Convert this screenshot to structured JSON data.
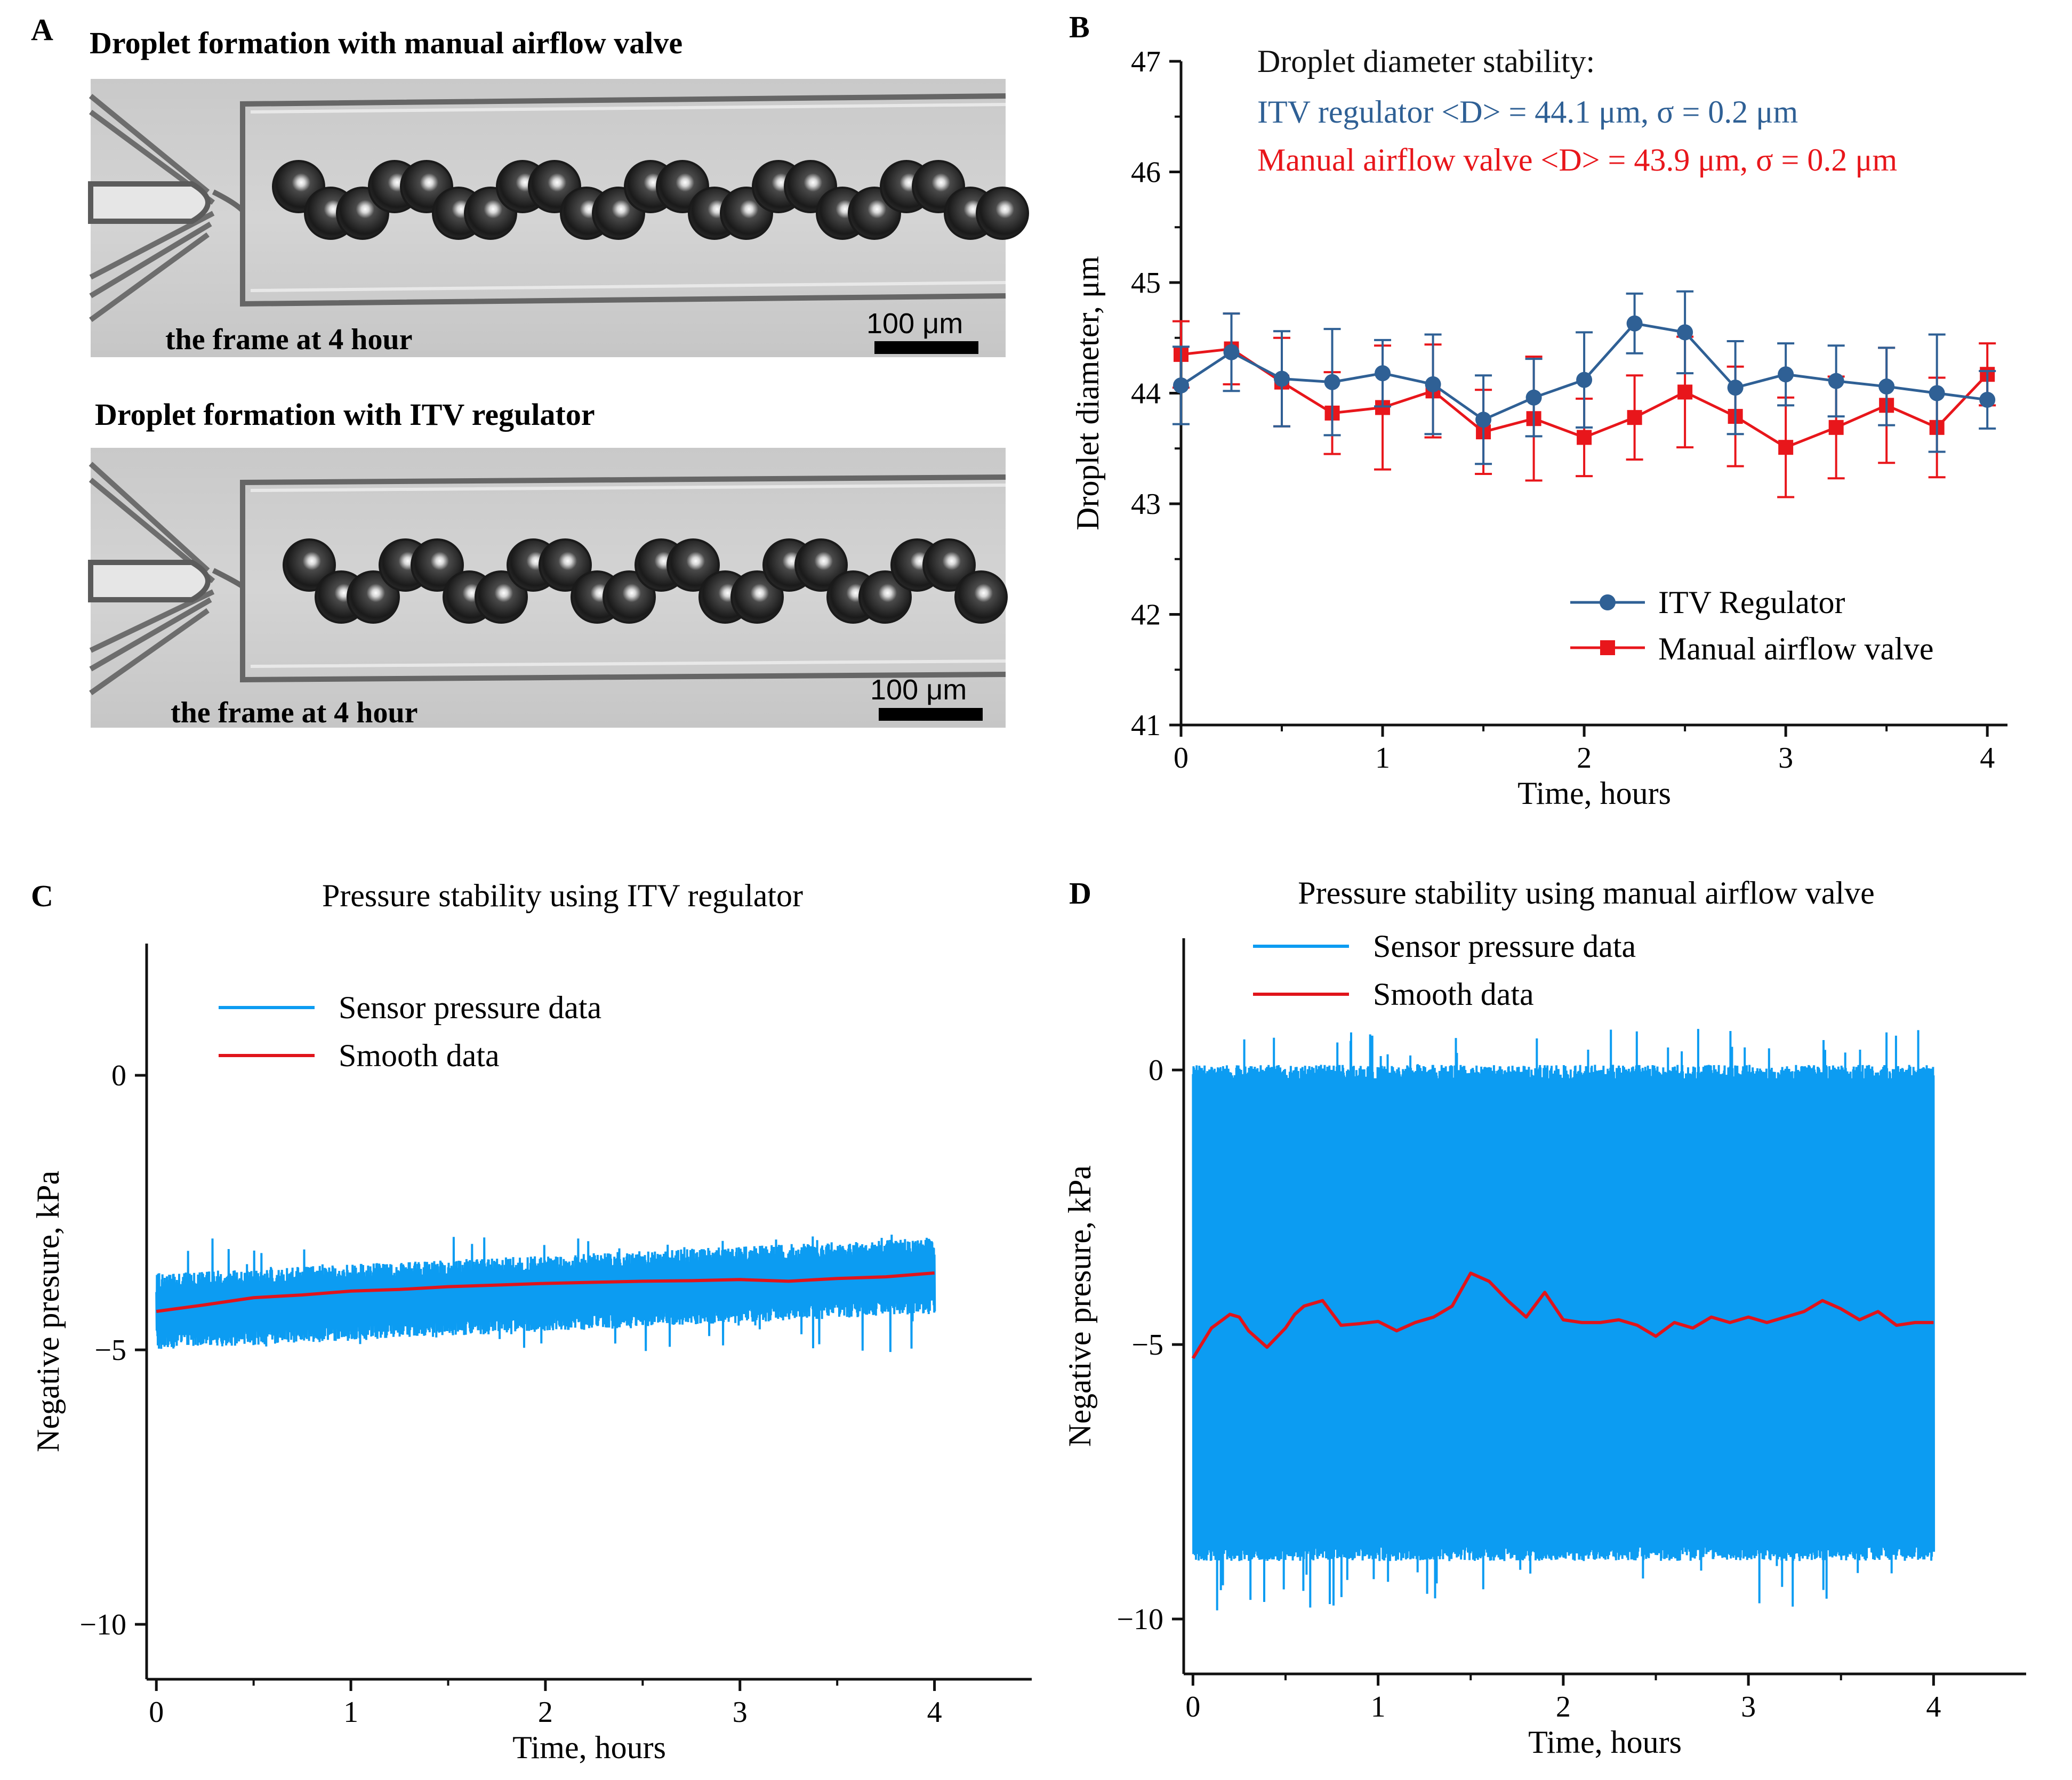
{
  "panels": {
    "A": {
      "letter": "A",
      "top_title": "Droplet formation with manual airflow valve",
      "top_caption": "the frame at 4 hour",
      "top_scale": "100 μm",
      "bottom_title": "Droplet formation with ITV regulator",
      "bottom_caption": "the frame at 4 hour",
      "bottom_scale": "100 μm"
    },
    "B": {
      "letter": "B"
    },
    "C": {
      "letter": "C"
    },
    "D": {
      "letter": "D"
    }
  },
  "colors": {
    "itv": "#2f6095",
    "manual": "#e8161b",
    "sensor": "#0c9cf2",
    "smooth": "#e0141b",
    "axis": "#111111"
  },
  "chart_data": [
    {
      "id": "B",
      "type": "line",
      "title": "",
      "xlabel": "Time, hours",
      "ylabel": "Droplet diameter, μm",
      "xlim": [
        0,
        4.1
      ],
      "ylim": [
        41,
        47
      ],
      "xticks": [
        0,
        1,
        2,
        3,
        4
      ],
      "xtick_labels": [
        "0",
        "1",
        "2",
        "3",
        "4"
      ],
      "yticks": [
        41,
        42,
        43,
        44,
        45,
        46,
        47
      ],
      "ytick_labels": [
        "41",
        "42",
        "43",
        "44",
        "45",
        "46",
        "47"
      ],
      "annotations": {
        "heading": "Droplet diameter stability:",
        "itv": "ITV regulator  <D> = 44.1 μm,  σ = 0.2 μm",
        "manual": "Manual airflow valve  <D> = 43.9 μm,  σ = 0.2 μm"
      },
      "x": [
        0,
        0.25,
        0.5,
        0.75,
        1,
        1.25,
        1.5,
        1.75,
        2,
        2.25,
        2.5,
        2.75,
        3,
        3.25,
        3.5,
        3.75,
        4
      ],
      "series": [
        {
          "name": "ITV Regulator",
          "marker": "circle",
          "values": [
            44.07,
            44.37,
            44.13,
            44.1,
            44.18,
            44.08,
            43.76,
            43.96,
            44.12,
            44.63,
            44.55,
            44.05,
            44.17,
            44.11,
            44.06,
            44.0,
            43.94
          ],
          "errors": [
            0.35,
            0.35,
            0.43,
            0.48,
            0.3,
            0.45,
            0.4,
            0.35,
            0.43,
            0.27,
            0.37,
            0.42,
            0.28,
            0.32,
            0.35,
            0.53,
            0.26
          ]
        },
        {
          "name": "Manual airflow valve",
          "marker": "square",
          "values": [
            44.35,
            44.4,
            44.1,
            43.82,
            43.87,
            44.02,
            43.65,
            43.77,
            43.6,
            43.78,
            44.01,
            43.79,
            43.51,
            43.69,
            43.89,
            43.69,
            44.17
          ],
          "errors": [
            0.3,
            0.32,
            0.4,
            0.37,
            0.56,
            0.42,
            0.38,
            0.56,
            0.35,
            0.38,
            0.5,
            0.45,
            0.45,
            0.46,
            0.52,
            0.45,
            0.28
          ]
        }
      ]
    },
    {
      "id": "C",
      "type": "line",
      "title": "Pressure stability using ITV regulator",
      "xlabel": "Time, hours",
      "ylabel": "Negative presure, kPa",
      "xlim": [
        -0.05,
        4.5
      ],
      "ylim": [
        -11,
        2.4
      ],
      "xticks": [
        0,
        1,
        2,
        3,
        4
      ],
      "xtick_labels": [
        "0",
        "1",
        "2",
        "3",
        "4"
      ],
      "yticks": [
        0,
        -5,
        -10
      ],
      "ytick_labels": [
        "0",
        "−5",
        "−10"
      ],
      "series": [
        {
          "name": "Sensor pressure data",
          "start": -4.3,
          "end": -3.65,
          "band_half_width": 0.45,
          "min": -5.05,
          "max": -2.9
        },
        {
          "name": "Smooth data",
          "x": [
            0,
            0.25,
            0.5,
            0.75,
            1,
            1.25,
            1.5,
            1.75,
            2,
            2.25,
            2.5,
            2.75,
            3,
            3.25,
            3.5,
            3.75,
            4
          ],
          "values": [
            -4.3,
            -4.18,
            -4.05,
            -4.0,
            -3.93,
            -3.9,
            -3.85,
            -3.82,
            -3.79,
            -3.77,
            -3.75,
            -3.74,
            -3.72,
            -3.75,
            -3.7,
            -3.67,
            -3.6
          ]
        }
      ]
    },
    {
      "id": "D",
      "type": "line",
      "title": "Pressure stability using manual airflow valve",
      "xlabel": "Time, hours",
      "ylabel": "Negative presure, kPa",
      "xlim": [
        -0.05,
        4.5
      ],
      "ylim": [
        -11,
        2.4
      ],
      "xticks": [
        0,
        1,
        2,
        3,
        4
      ],
      "xtick_labels": [
        "0",
        "1",
        "2",
        "3",
        "4"
      ],
      "yticks": [
        0,
        -5,
        -10
      ],
      "ytick_labels": [
        "0",
        "−5",
        "−10"
      ],
      "series": [
        {
          "name": "Sensor pressure data",
          "start": -4.6,
          "end": -4.6,
          "band_low": -8.7,
          "band_high": -0.15,
          "min": -9.85,
          "max": 0.75
        },
        {
          "name": "Smooth data",
          "x": [
            0,
            0.1,
            0.2,
            0.25,
            0.3,
            0.4,
            0.5,
            0.55,
            0.6,
            0.7,
            0.8,
            0.9,
            1.0,
            1.1,
            1.2,
            1.3,
            1.4,
            1.5,
            1.6,
            1.7,
            1.8,
            1.9,
            2.0,
            2.1,
            2.2,
            2.3,
            2.4,
            2.5,
            2.6,
            2.7,
            2.8,
            2.9,
            3.0,
            3.1,
            3.2,
            3.3,
            3.4,
            3.5,
            3.6,
            3.7,
            3.8,
            3.9,
            4.0
          ],
          "values": [
            -5.25,
            -4.7,
            -4.45,
            -4.5,
            -4.75,
            -5.05,
            -4.7,
            -4.45,
            -4.3,
            -4.2,
            -4.65,
            -4.62,
            -4.58,
            -4.75,
            -4.6,
            -4.5,
            -4.3,
            -3.7,
            -3.85,
            -4.2,
            -4.5,
            -4.05,
            -4.55,
            -4.6,
            -4.6,
            -4.55,
            -4.65,
            -4.85,
            -4.6,
            -4.7,
            -4.5,
            -4.6,
            -4.5,
            -4.6,
            -4.5,
            -4.4,
            -4.2,
            -4.35,
            -4.55,
            -4.4,
            -4.65,
            -4.6,
            -4.6
          ]
        }
      ]
    }
  ]
}
